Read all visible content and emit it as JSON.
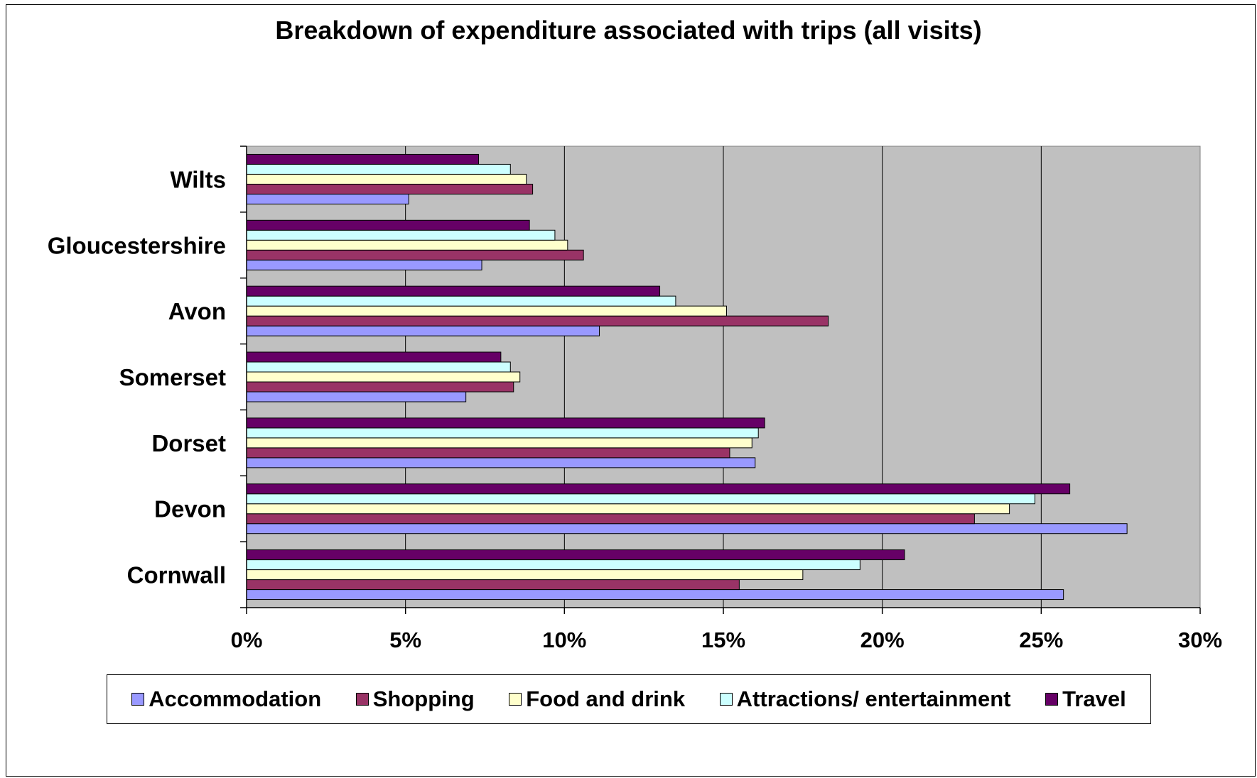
{
  "chart_data": {
    "type": "bar",
    "orientation": "horizontal",
    "title": "Breakdown of expenditure associated with trips (all visits)",
    "xlabel": "",
    "ylabel": "",
    "xlim": [
      0,
      30
    ],
    "x_ticks": [
      0,
      5,
      10,
      15,
      20,
      25,
      30
    ],
    "x_tick_labels": [
      "0%",
      "5%",
      "10%",
      "15%",
      "20%",
      "25%",
      "30%"
    ],
    "categories": [
      "Cornwall",
      "Devon",
      "Dorset",
      "Somerset",
      "Avon",
      "Gloucestershire",
      "Wilts"
    ],
    "grid": "vertical-major",
    "plot_background": "#c0c0c0",
    "legend_position": "bottom",
    "series": [
      {
        "name": "Accommodation",
        "color": "#9999ff",
        "values": [
          25.7,
          27.7,
          16.0,
          6.9,
          11.1,
          7.4,
          5.1
        ]
      },
      {
        "name": "Shopping",
        "color": "#993366",
        "values": [
          15.5,
          22.9,
          15.2,
          8.4,
          18.3,
          10.6,
          9.0
        ]
      },
      {
        "name": "Food and drink",
        "color": "#ffffcc",
        "values": [
          17.5,
          24.0,
          15.9,
          8.6,
          15.1,
          10.1,
          8.8
        ]
      },
      {
        "name": "Attractions/ entertainment",
        "color": "#ccffff",
        "values": [
          19.3,
          24.8,
          16.1,
          8.3,
          13.5,
          9.7,
          8.3
        ]
      },
      {
        "name": "Travel",
        "color": "#660066",
        "values": [
          20.7,
          25.9,
          16.3,
          8.0,
          13.0,
          8.9,
          7.3
        ]
      }
    ]
  }
}
